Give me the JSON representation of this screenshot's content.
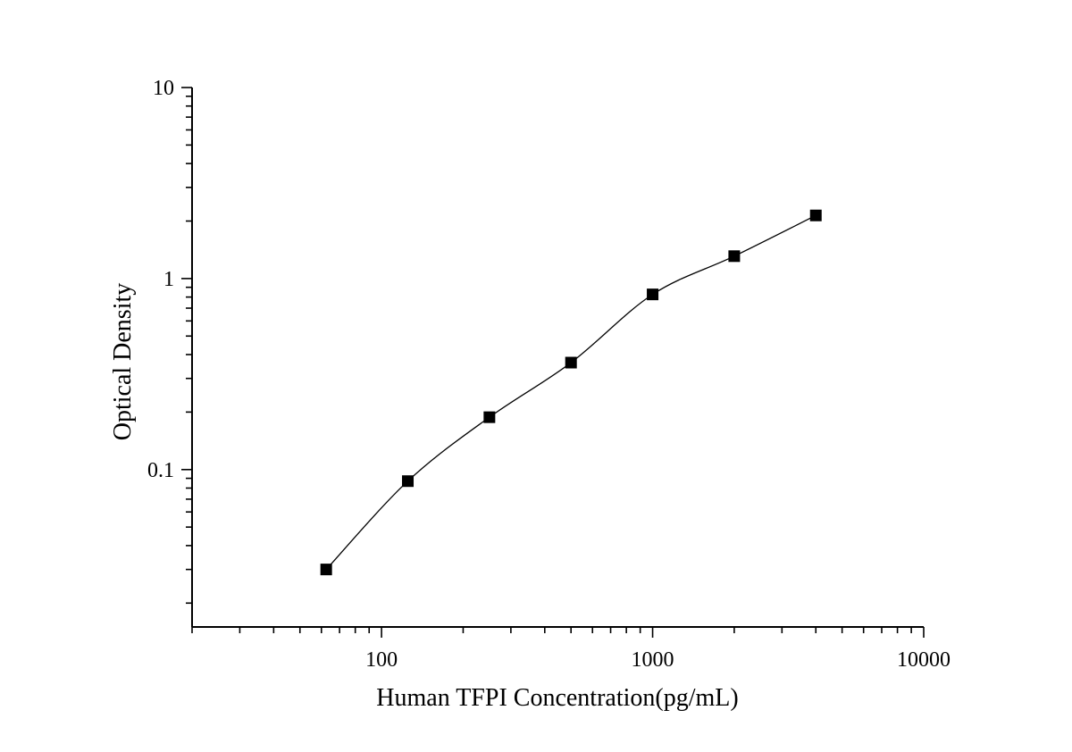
{
  "chart_data": {
    "type": "scatter",
    "title": "",
    "xlabel": "Human TFPI Concentration(pg/mL)",
    "ylabel": "Optical Density",
    "x_scale": "log",
    "y_scale": "log",
    "xlim": [
      20,
      10000
    ],
    "ylim": [
      0.015,
      10
    ],
    "x_ticks": [
      {
        "value": 100,
        "label": "100"
      },
      {
        "value": 1000,
        "label": "1000"
      },
      {
        "value": 10000,
        "label": "10000"
      }
    ],
    "y_ticks": [
      {
        "value": 0.1,
        "label": "0.1"
      },
      {
        "value": 1,
        "label": "1"
      },
      {
        "value": 10,
        "label": "10"
      }
    ],
    "grid": false,
    "series": [
      {
        "marker": "square",
        "line": "smooth",
        "color": "#000000",
        "x": [
          62.5,
          125,
          250,
          500,
          1000,
          2000,
          4000
        ],
        "y": [
          0.03,
          0.087,
          0.188,
          0.363,
          0.826,
          1.31,
          2.14
        ]
      }
    ]
  }
}
